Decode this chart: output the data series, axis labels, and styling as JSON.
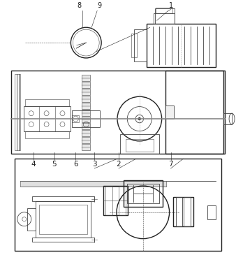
{
  "bg_color": "#ffffff",
  "lc": "#444444",
  "dc": "#222222",
  "fig_width": 3.38,
  "fig_height": 3.75,
  "dpi": 100
}
